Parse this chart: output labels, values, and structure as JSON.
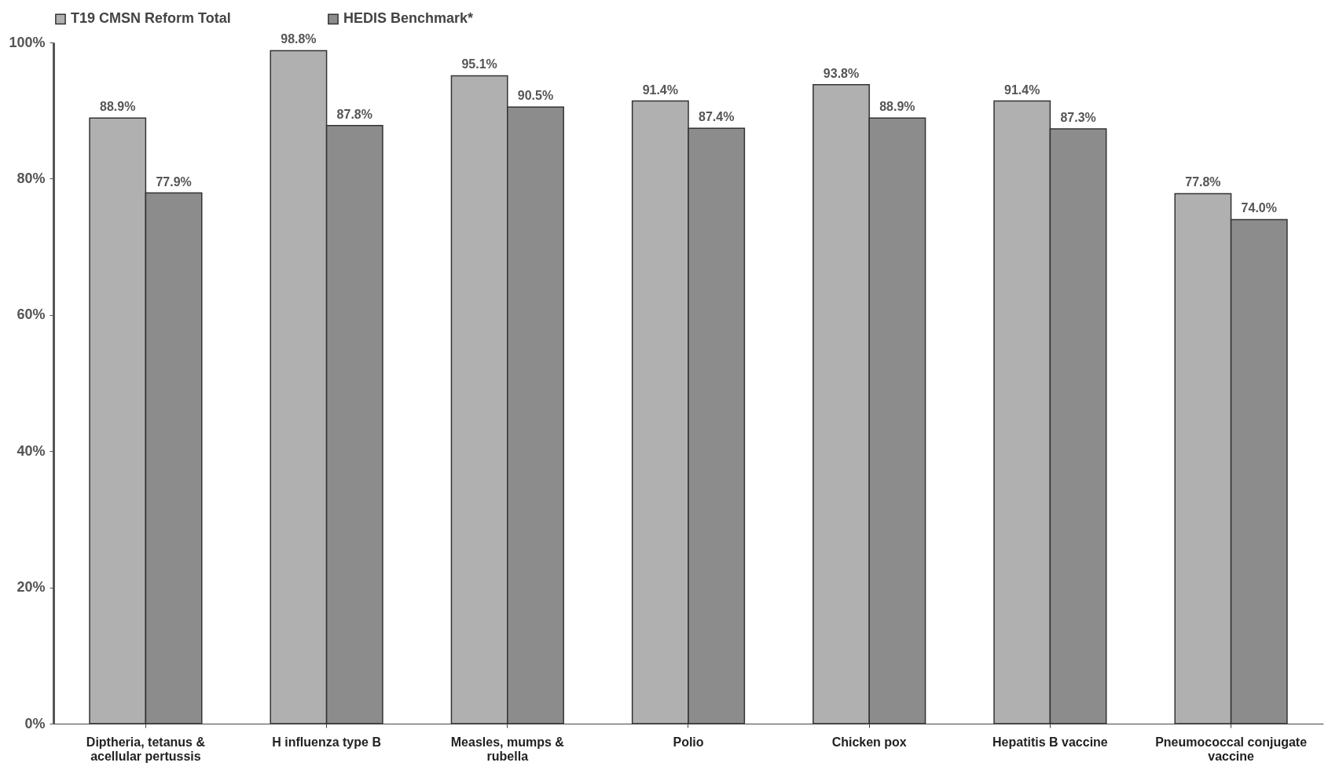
{
  "chart_data": {
    "type": "bar",
    "categories": [
      "Diptheria, tetanus & acellular pertussis",
      "H influenza type B",
      "Measles, mumps & rubella",
      "Polio",
      "Chicken pox",
      "Hepatitis B vaccine",
      "Pneumococcal conjugate vaccine"
    ],
    "series": [
      {
        "name": "T19 CMSN Reform Total",
        "color": "#b0b0b0",
        "values": [
          88.9,
          98.8,
          95.1,
          91.4,
          93.8,
          91.4,
          77.8
        ],
        "value_labels": [
          "88.9%",
          "98.8%",
          "95.1%",
          "91.4%",
          "93.8%",
          "91.4%",
          "77.8%"
        ]
      },
      {
        "name": "HEDIS Benchmark*",
        "color": "#8c8c8c",
        "values": [
          77.9,
          87.8,
          90.5,
          87.4,
          88.9,
          87.3,
          74.0
        ],
        "value_labels": [
          "77.9%",
          "87.8%",
          "90.5%",
          "87.4%",
          "88.9%",
          "87.3%",
          "74.0%"
        ]
      }
    ],
    "ylim": [
      0,
      100
    ],
    "yticks": [
      {
        "value": 0,
        "label": "0%"
      },
      {
        "value": 20,
        "label": "20%"
      },
      {
        "value": 40,
        "label": "40%"
      },
      {
        "value": 60,
        "label": "60%"
      },
      {
        "value": 80,
        "label": "80%"
      },
      {
        "value": 100,
        "label": "100%"
      }
    ],
    "grid": false,
    "legend": "top"
  }
}
